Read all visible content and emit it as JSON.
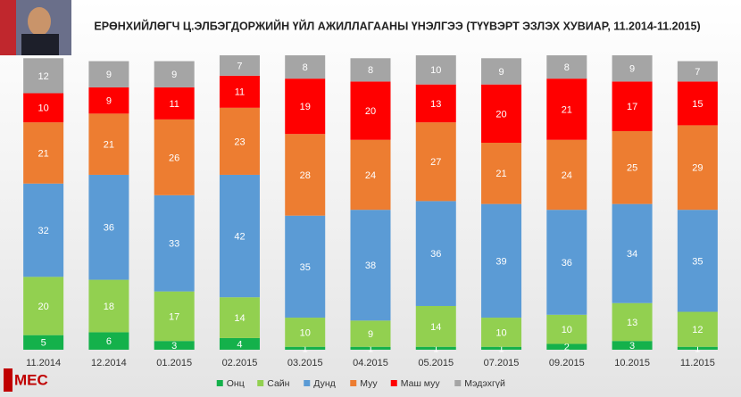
{
  "chart_data": {
    "type": "stacked_bar",
    "title": "ЕРӨНХИЙЛӨГЧ Ц.ЭЛБЭГДОРЖИЙН ҮЙЛ АЖИЛЛАГААНЫ ҮНЭЛГЭЭ (ТҮҮВЭРТ ЭЗЛЭХ ХУВИАР, 11.2014-11.2015)",
    "logo": "MEC",
    "categories": [
      "11.2014",
      "12.2014",
      "01.2015",
      "02.2015",
      "03.2015",
      "04.2015",
      "05.2015",
      "07.2015",
      "09.2015",
      "10.2015",
      "11.2015"
    ],
    "series": [
      {
        "name": "Онц",
        "color": "#14b14b",
        "values": [
          5,
          6,
          3,
          4,
          1,
          1,
          1,
          1,
          2,
          3,
          1
        ]
      },
      {
        "name": "Сайн",
        "color": "#92d050",
        "values": [
          20,
          18,
          17,
          14,
          10,
          9,
          14,
          10,
          10,
          13,
          12
        ]
      },
      {
        "name": "Дунд",
        "color": "#5b9bd5",
        "values": [
          32,
          36,
          33,
          42,
          35,
          38,
          36,
          39,
          36,
          34,
          35
        ]
      },
      {
        "name": "Муу",
        "color": "#ed7d31",
        "values": [
          21,
          21,
          26,
          23,
          28,
          24,
          27,
          21,
          24,
          25,
          29
        ]
      },
      {
        "name": "Маш муу",
        "color": "#ff0000",
        "values": [
          10,
          9,
          11,
          11,
          19,
          20,
          13,
          20,
          21,
          17,
          15
        ]
      },
      {
        "name": "Мэдэхгүй",
        "color": "#a5a5a5",
        "values": [
          12,
          9,
          9,
          7,
          8,
          8,
          10,
          9,
          8,
          9,
          7
        ]
      }
    ]
  }
}
